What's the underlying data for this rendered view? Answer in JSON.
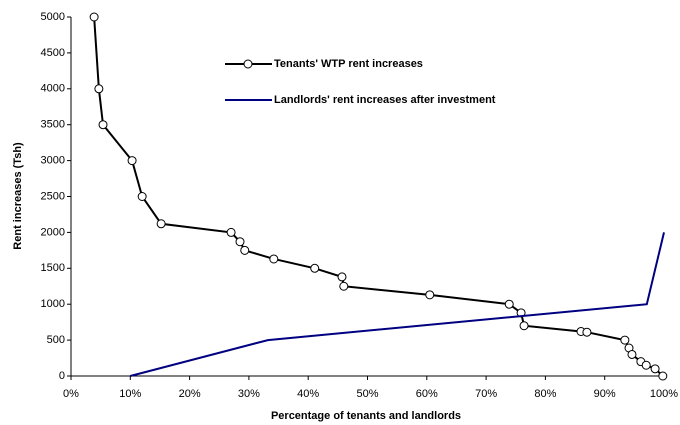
{
  "chart_data": {
    "type": "line",
    "xlabel": "Percentage of tenants and landlords",
    "ylabel": "Rent increases (Tsh)",
    "xlim": [
      0,
      100
    ],
    "xticks": [
      {
        "value": 0,
        "label": "0%"
      },
      {
        "value": 10,
        "label": "10%"
      },
      {
        "value": 20,
        "label": "20%"
      },
      {
        "value": 30,
        "label": "30%"
      },
      {
        "value": 40,
        "label": "40%"
      },
      {
        "value": 50,
        "label": "50%"
      },
      {
        "value": 60,
        "label": "60%"
      },
      {
        "value": 70,
        "label": "70%"
      },
      {
        "value": 80,
        "label": "80%"
      },
      {
        "value": 90,
        "label": "90%"
      },
      {
        "value": 100,
        "label": "100%"
      }
    ],
    "ylim": [
      0,
      5000
    ],
    "yticks": [
      0,
      500,
      1000,
      1500,
      2000,
      2500,
      3000,
      3500,
      4000,
      4500,
      5000
    ],
    "grid": false,
    "series": [
      {
        "name": "Tenants' WTP rent increases",
        "color": "#000000",
        "marker": "circle",
        "x": [
          3.9,
          4.7,
          5.4,
          10.3,
          12.0,
          15.2,
          27.0,
          28.5,
          29.3,
          34.2,
          41.1,
          45.7,
          46.0,
          60.5,
          73.9,
          75.9,
          76.4,
          86.0,
          87.0,
          93.4,
          94.1,
          94.6,
          96.1,
          97.0,
          98.5,
          99.8
        ],
        "values": [
          5000,
          4000,
          3500,
          3000,
          2500,
          2120,
          2000,
          1870,
          1750,
          1630,
          1500,
          1380,
          1250,
          1130,
          1000,
          880,
          700,
          620,
          610,
          500,
          390,
          300,
          200,
          150,
          100,
          0
        ]
      },
      {
        "name": "Landlords' rent increases after investment",
        "color": "#000080",
        "x": [
          10,
          33.2,
          97.1,
          100
        ],
        "values": [
          0,
          500,
          1000,
          2000
        ]
      }
    ]
  }
}
